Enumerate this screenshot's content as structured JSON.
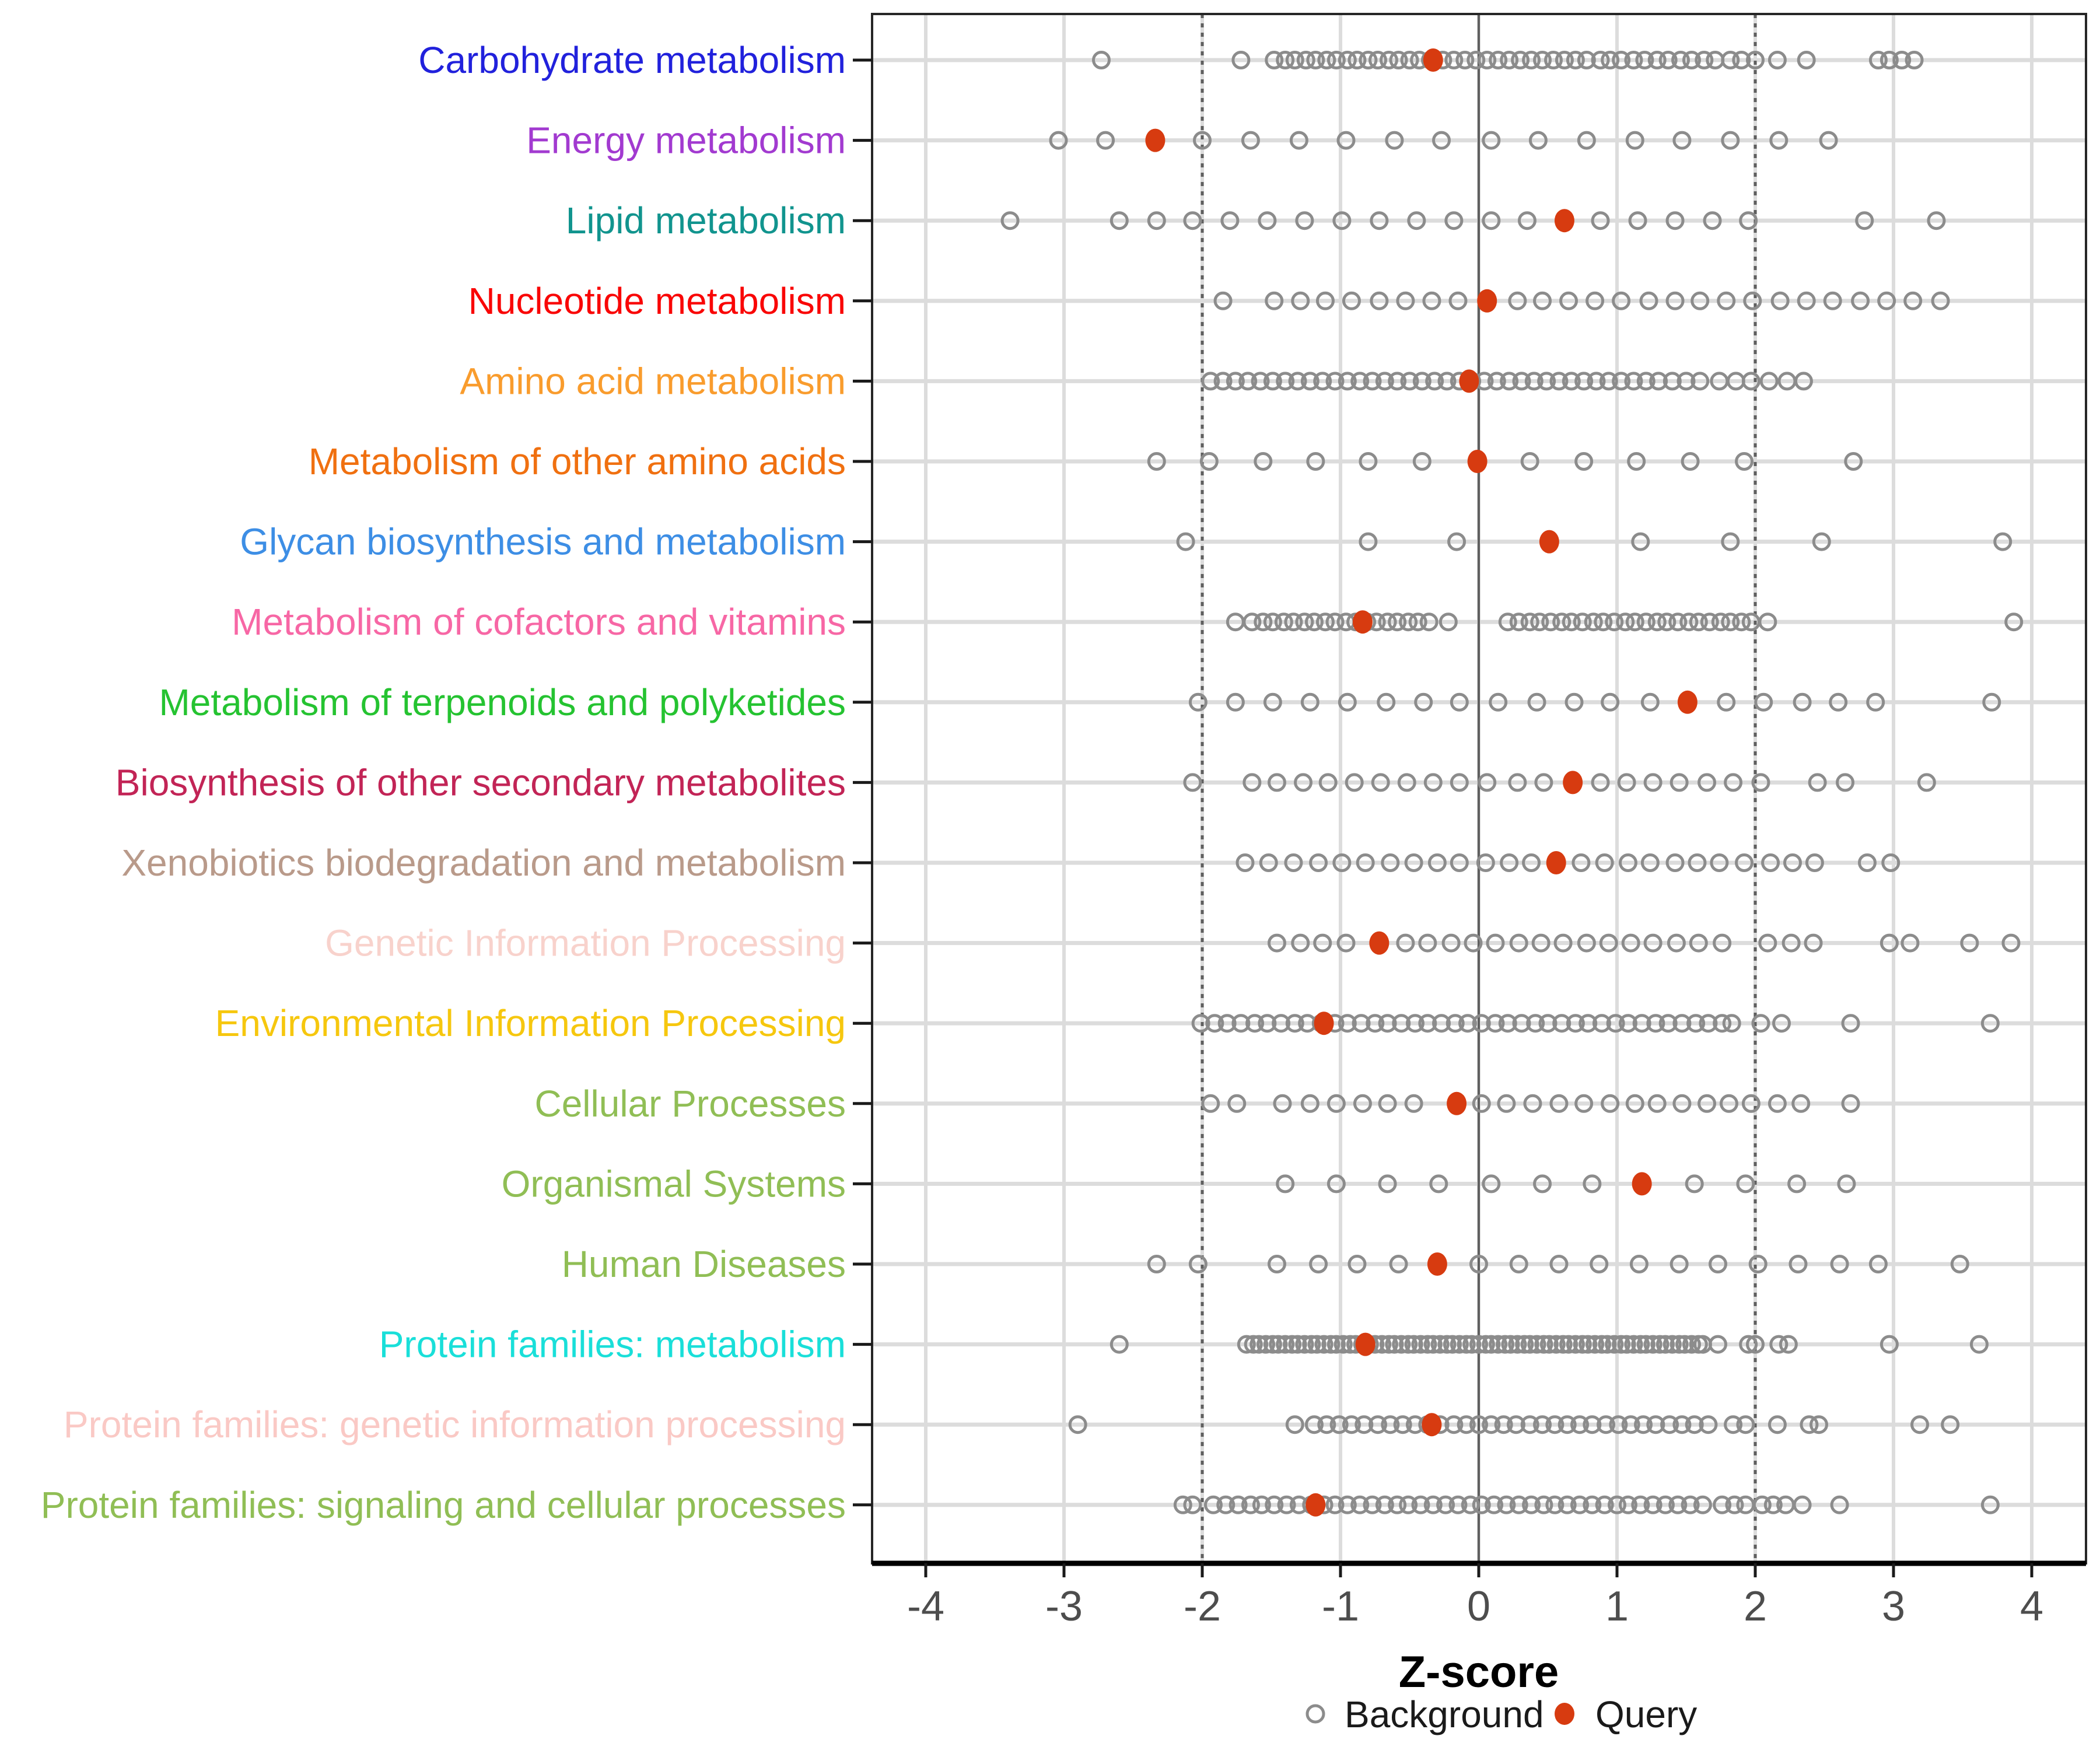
{
  "chart_data": {
    "type": "scatter",
    "variant": "categorical-dot-strip",
    "title": "",
    "xlabel": "Z-score",
    "xlim": [
      -4.4,
      4.4
    ],
    "x_ticks": [
      -4,
      -3,
      -2,
      -1,
      0,
      1,
      2,
      3,
      4
    ],
    "grid": "on",
    "reference_lines": {
      "solid_at": [
        0
      ],
      "dashed_at": [
        -2,
        2
      ]
    },
    "legend_position": "bottom-center",
    "legend": [
      {
        "label": "Background",
        "marker": "open-circle",
        "color": "#8C8C8C"
      },
      {
        "label": "Query",
        "marker": "filled-circle",
        "color": "#D73B10"
      }
    ],
    "style": {
      "background_marker_stroke": "#8C8C8C",
      "query_marker_fill": "#D73B10",
      "row_band_color": "#DCDCDC",
      "gridline_color": "#DCDCDC",
      "refline_color": "#5F5F5F",
      "axis_text_color": "#4D4D4D",
      "axis_line_color": "#000000",
      "panel_border_color": "#262626"
    },
    "rows": [
      {
        "label": "Carbohydrate metabolism",
        "label_color": "#2121DC",
        "query": -0.33,
        "background": [
          -2.73,
          -1.72,
          -1.48,
          -1.4,
          -1.33,
          -1.25,
          -1.18,
          -1.1,
          -1.03,
          -0.95,
          -0.88,
          -0.8,
          -0.73,
          -0.65,
          -0.58,
          -0.5,
          -0.43,
          -0.35,
          -0.26,
          -0.18,
          -0.1,
          -0.02,
          0.06,
          0.14,
          0.22,
          0.3,
          0.38,
          0.46,
          0.54,
          0.62,
          0.7,
          0.78,
          0.88,
          0.95,
          1.03,
          1.12,
          1.2,
          1.29,
          1.37,
          1.46,
          1.54,
          1.63,
          1.71,
          1.82,
          1.9,
          2.0,
          2.16,
          2.37,
          2.89,
          2.97,
          3.06,
          3.15
        ]
      },
      {
        "label": "Energy metabolism",
        "label_color": "#A23AD0",
        "query": -2.34,
        "background": [
          -3.04,
          -2.7,
          -2.0,
          -1.65,
          -1.3,
          -0.96,
          -0.61,
          -0.27,
          0.09,
          0.43,
          0.78,
          1.13,
          1.47,
          1.82,
          2.17,
          2.53
        ]
      },
      {
        "label": "Lipid metabolism",
        "label_color": "#11948E",
        "query": 0.62,
        "background": [
          -3.39,
          -2.6,
          -2.33,
          -2.07,
          -1.8,
          -1.53,
          -1.26,
          -0.99,
          -0.72,
          -0.45,
          -0.18,
          0.09,
          0.35,
          0.88,
          1.15,
          1.42,
          1.69,
          1.95,
          2.79,
          3.31
        ]
      },
      {
        "label": "Nucleotide metabolism",
        "label_color": "#F90606",
        "query": 0.06,
        "background": [
          -1.85,
          -1.48,
          -1.29,
          -1.11,
          -0.92,
          -0.72,
          -0.53,
          -0.34,
          -0.15,
          0.28,
          0.46,
          0.65,
          0.84,
          1.03,
          1.23,
          1.42,
          1.6,
          1.79,
          1.98,
          2.18,
          2.37,
          2.56,
          2.76,
          2.95,
          3.14,
          3.34
        ]
      },
      {
        "label": "Amino acid metabolism",
        "label_color": "#F99C2D",
        "query": -0.07,
        "background": [
          -1.94,
          -1.85,
          -1.76,
          -1.67,
          -1.58,
          -1.49,
          -1.4,
          -1.31,
          -1.22,
          -1.13,
          -1.04,
          -0.95,
          -0.86,
          -0.77,
          -0.68,
          -0.59,
          -0.5,
          -0.41,
          -0.32,
          -0.23,
          -0.14,
          -0.05,
          0.04,
          0.13,
          0.22,
          0.31,
          0.4,
          0.49,
          0.58,
          0.67,
          0.76,
          0.85,
          0.94,
          1.03,
          1.12,
          1.21,
          1.3,
          1.4,
          1.5,
          1.6,
          1.74,
          1.86,
          1.97,
          2.1,
          2.23,
          2.35
        ]
      },
      {
        "label": "Metabolism of other amino acids",
        "label_color": "#F07010",
        "query": -0.01,
        "background": [
          -2.33,
          -1.95,
          -1.56,
          -1.18,
          -0.8,
          -0.41,
          0.37,
          0.76,
          1.14,
          1.53,
          1.92,
          2.71
        ]
      },
      {
        "label": "Glycan biosynthesis and metabolism",
        "label_color": "#3D8EE5",
        "query": 0.51,
        "background": [
          -2.12,
          -0.8,
          -0.16,
          1.17,
          1.82,
          2.48,
          3.79
        ]
      },
      {
        "label": "Metabolism of cofactors and vitamins",
        "label_color": "#F767A5",
        "query": -0.84,
        "background": [
          -1.76,
          -1.64,
          -1.56,
          -1.49,
          -1.41,
          -1.34,
          -1.26,
          -1.19,
          -1.11,
          -1.04,
          -0.96,
          -0.89,
          -0.81,
          -0.74,
          -0.66,
          -0.59,
          -0.51,
          -0.44,
          -0.36,
          -0.22,
          0.21,
          0.29,
          0.37,
          0.44,
          0.52,
          0.6,
          0.67,
          0.75,
          0.83,
          0.9,
          0.98,
          1.06,
          1.13,
          1.21,
          1.29,
          1.36,
          1.44,
          1.52,
          1.59,
          1.67,
          1.75,
          1.82,
          1.9,
          1.97,
          2.09,
          3.87
        ]
      },
      {
        "label": "Metabolism of terpenoids and polyketides",
        "label_color": "#25C331",
        "query": 1.51,
        "background": [
          -2.03,
          -1.76,
          -1.49,
          -1.22,
          -0.95,
          -0.67,
          -0.4,
          -0.14,
          0.14,
          0.42,
          0.69,
          0.95,
          1.24,
          1.79,
          2.06,
          2.34,
          2.6,
          2.87,
          3.71
        ]
      },
      {
        "label": "Biosynthesis of other secondary metabolites",
        "label_color": "#C22456",
        "query": 0.68,
        "background": [
          -2.07,
          -1.64,
          -1.46,
          -1.27,
          -1.09,
          -0.9,
          -0.71,
          -0.52,
          -0.33,
          -0.14,
          0.06,
          0.28,
          0.47,
          0.88,
          1.07,
          1.26,
          1.45,
          1.65,
          1.84,
          2.04,
          2.45,
          2.65,
          3.24
        ]
      },
      {
        "label": "Xenobiotics biodegradation and metabolism",
        "label_color": "#B99A8A",
        "query": 0.56,
        "background": [
          -1.69,
          -1.52,
          -1.34,
          -1.16,
          -0.99,
          -0.82,
          -0.64,
          -0.47,
          -0.3,
          -0.14,
          0.05,
          0.22,
          0.38,
          0.74,
          0.91,
          1.08,
          1.24,
          1.42,
          1.58,
          1.74,
          1.92,
          2.11,
          2.27,
          2.43,
          2.81,
          2.98
        ]
      },
      {
        "label": "Genetic Information Processing",
        "label_color": "#F8D2CC",
        "query": -0.72,
        "background": [
          -1.46,
          -1.29,
          -1.13,
          -0.96,
          -0.53,
          -0.37,
          -0.2,
          -0.04,
          0.12,
          0.29,
          0.45,
          0.61,
          0.78,
          0.94,
          1.1,
          1.26,
          1.43,
          1.59,
          1.76,
          2.09,
          2.26,
          2.42,
          2.97,
          3.12,
          3.55,
          3.85
        ]
      },
      {
        "label": "Environmental Information Processing",
        "label_color": "#F6C70E",
        "query": -1.12,
        "background": [
          -2.01,
          -1.91,
          -1.82,
          -1.72,
          -1.62,
          -1.53,
          -1.43,
          -1.33,
          -1.24,
          -1.14,
          -1.04,
          -0.95,
          -0.85,
          -0.75,
          -0.66,
          -0.56,
          -0.46,
          -0.37,
          -0.27,
          -0.17,
          -0.08,
          0.02,
          0.12,
          0.21,
          0.31,
          0.41,
          0.5,
          0.6,
          0.7,
          0.79,
          0.89,
          0.99,
          1.08,
          1.18,
          1.28,
          1.37,
          1.47,
          1.57,
          1.66,
          1.76,
          1.83,
          2.04,
          2.19,
          2.69,
          3.7
        ]
      },
      {
        "label": "Cellular Processes",
        "label_color": "#90BE55",
        "query": -0.16,
        "background": [
          -1.94,
          -1.75,
          -1.42,
          -1.22,
          -1.03,
          -0.84,
          -0.66,
          -0.47,
          0.02,
          0.2,
          0.39,
          0.58,
          0.76,
          0.95,
          1.13,
          1.29,
          1.47,
          1.65,
          1.81,
          1.97,
          2.16,
          2.33,
          2.69
        ]
      },
      {
        "label": "Organismal Systems",
        "label_color": "#90BE55",
        "query": 1.18,
        "background": [
          -1.4,
          -1.03,
          -0.66,
          -0.29,
          0.09,
          0.46,
          0.82,
          1.56,
          1.93,
          2.3,
          2.66
        ]
      },
      {
        "label": "Human Diseases",
        "label_color": "#90BE55",
        "query": -0.3,
        "background": [
          -2.33,
          -2.03,
          -1.46,
          -1.16,
          -0.88,
          -0.58,
          0.0,
          0.29,
          0.58,
          0.87,
          1.16,
          1.45,
          1.73,
          2.02,
          2.31,
          2.61,
          2.89,
          3.48
        ]
      },
      {
        "label": "Protein families: metabolism",
        "label_color": "#19DFD9",
        "query": -0.82,
        "background": [
          -2.6,
          -1.68,
          -1.63,
          -1.59,
          -1.54,
          -1.49,
          -1.45,
          -1.4,
          -1.35,
          -1.31,
          -1.26,
          -1.21,
          -1.17,
          -1.12,
          -1.07,
          -1.03,
          -0.98,
          -0.93,
          -0.89,
          -0.84,
          -0.79,
          -0.75,
          -0.7,
          -0.65,
          -0.61,
          -0.56,
          -0.51,
          -0.47,
          -0.42,
          -0.37,
          -0.33,
          -0.28,
          -0.23,
          -0.19,
          -0.14,
          -0.09,
          -0.05,
          0.0,
          0.05,
          0.09,
          0.14,
          0.19,
          0.23,
          0.28,
          0.33,
          0.37,
          0.42,
          0.47,
          0.51,
          0.56,
          0.61,
          0.65,
          0.7,
          0.75,
          0.79,
          0.84,
          0.89,
          0.93,
          0.98,
          1.03,
          1.07,
          1.12,
          1.17,
          1.21,
          1.26,
          1.31,
          1.35,
          1.4,
          1.45,
          1.49,
          1.54,
          1.59,
          1.62,
          1.73,
          1.95,
          2.0,
          2.17,
          2.24,
          2.97,
          3.62
        ]
      },
      {
        "label": "Protein families: genetic information processing",
        "label_color": "#FAC9C5",
        "query": -0.34,
        "background": [
          -2.9,
          -1.33,
          -1.19,
          -1.1,
          -1.01,
          -0.92,
          -0.83,
          -0.73,
          -0.64,
          -0.55,
          -0.46,
          -0.37,
          -0.28,
          -0.18,
          -0.09,
          0.0,
          0.09,
          0.18,
          0.27,
          0.37,
          0.46,
          0.55,
          0.64,
          0.73,
          0.82,
          0.92,
          1.01,
          1.1,
          1.19,
          1.28,
          1.38,
          1.47,
          1.56,
          1.66,
          1.84,
          1.93,
          2.16,
          2.39,
          2.46,
          3.19,
          3.41
        ]
      },
      {
        "label": "Protein families: signaling and cellular processes",
        "label_color": "#90BE55",
        "query": -1.18,
        "background": [
          -2.14,
          -2.07,
          -1.92,
          -1.83,
          -1.74,
          -1.65,
          -1.57,
          -1.48,
          -1.39,
          -1.3,
          -1.21,
          -1.12,
          -1.04,
          -0.95,
          -0.86,
          -0.77,
          -0.68,
          -0.59,
          -0.51,
          -0.42,
          -0.33,
          -0.24,
          -0.15,
          -0.06,
          0.02,
          0.11,
          0.2,
          0.29,
          0.38,
          0.47,
          0.55,
          0.64,
          0.73,
          0.82,
          0.91,
          1.0,
          1.08,
          1.17,
          1.26,
          1.35,
          1.44,
          1.53,
          1.62,
          1.76,
          1.85,
          1.93,
          2.05,
          2.13,
          2.22,
          2.34,
          2.61,
          3.7
        ]
      }
    ]
  }
}
